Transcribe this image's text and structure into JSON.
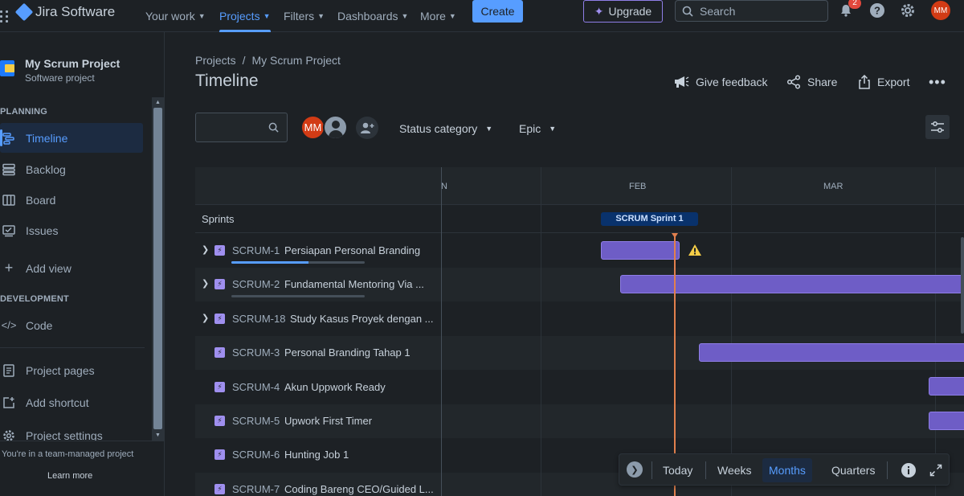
{
  "topnav": {
    "app_name": "Jira Software",
    "items": [
      {
        "label": "Your work",
        "has_dropdown": true
      },
      {
        "label": "Projects",
        "has_dropdown": true,
        "active": true
      },
      {
        "label": "Filters",
        "has_dropdown": true
      },
      {
        "label": "Dashboards",
        "has_dropdown": true
      },
      {
        "label": "More",
        "has_dropdown": true
      }
    ],
    "create_label": "Create",
    "upgrade_label": "Upgrade",
    "search_placeholder": "Search",
    "notifications_count": "2",
    "user_initials": "MM",
    "icons": [
      "apps-grid-icon",
      "notifications-icon",
      "help-icon",
      "settings-icon"
    ]
  },
  "sidebar": {
    "project_name": "My Scrum Project",
    "project_type": "Software project",
    "planning_label": "PLANNING",
    "planning_items": [
      {
        "label": "Timeline",
        "icon": "timeline-icon",
        "active": true
      },
      {
        "label": "Backlog",
        "icon": "backlog-icon"
      },
      {
        "label": "Board",
        "icon": "board-icon"
      },
      {
        "label": "Issues",
        "icon": "issues-icon"
      },
      {
        "label": "Add view",
        "icon": "plus-icon"
      }
    ],
    "development_label": "DEVELOPMENT",
    "development_items": [
      {
        "label": "Code",
        "icon": "code-icon"
      }
    ],
    "other_items": [
      {
        "label": "Project pages",
        "icon": "page-icon"
      },
      {
        "label": "Add shortcut",
        "icon": "add-shortcut-icon"
      },
      {
        "label": "Project settings",
        "icon": "gear-icon"
      }
    ],
    "footer_text": "You're in a team-managed project",
    "learn_more": "Learn more"
  },
  "main": {
    "breadcrumb": [
      "Projects",
      "My Scrum Project"
    ],
    "breadcrumb_sep": "/",
    "title": "Timeline",
    "actions": [
      {
        "label": "Give feedback",
        "icon": "megaphone-icon"
      },
      {
        "label": "Share",
        "icon": "share-icon"
      },
      {
        "label": "Export",
        "icon": "export-icon"
      }
    ],
    "filters": {
      "assignee_initials": "MM",
      "status_category_label": "Status category",
      "epic_label": "Epic"
    }
  },
  "timeline": {
    "months": [
      "N",
      "FEB",
      "MAR"
    ],
    "sprints_label": "Sprints",
    "sprint_chip": "SCRUM Sprint 1",
    "issues": [
      {
        "key": "SCRUM-1",
        "summary": "Persiapan Personal Branding",
        "expandable": true,
        "progress": 0.58,
        "warning": true
      },
      {
        "key": "SCRUM-2",
        "summary": "Fundamental Mentoring Via ...",
        "expandable": true,
        "progress": 0
      },
      {
        "key": "SCRUM-18",
        "summary": "Study Kasus Proyek dengan ...",
        "expandable": true
      },
      {
        "key": "SCRUM-3",
        "summary": "Personal Branding Tahap 1",
        "expandable": false
      },
      {
        "key": "SCRUM-4",
        "summary": "Akun Uppwork Ready",
        "expandable": false
      },
      {
        "key": "SCRUM-5",
        "summary": "Upwork First Timer",
        "expandable": false
      },
      {
        "key": "SCRUM-6",
        "summary": "Hunting Job 1",
        "expandable": false
      },
      {
        "key": "SCRUM-7",
        "summary": "Coding Bareng CEO/Guided L...",
        "expandable": false
      }
    ],
    "zoom": {
      "today": "Today",
      "options": [
        "Weeks",
        "Months",
        "Quarters"
      ],
      "selected": "Months"
    }
  },
  "colors": {
    "accent": "#579dff",
    "bar": "#6e5dc6",
    "today_line": "#e2804d",
    "warning": "#f5cd47"
  }
}
